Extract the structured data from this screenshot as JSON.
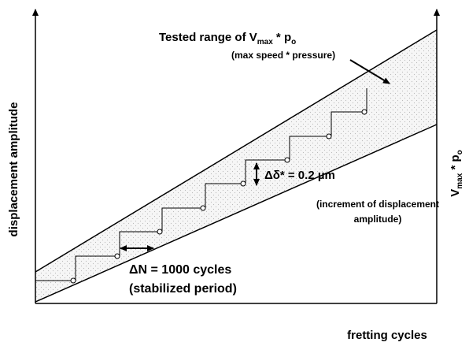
{
  "title_parts": [
    "Tested range of V",
    "max",
    " * p",
    "o"
  ],
  "subtitle": "(max speed * pressure)",
  "y_axis_label": "displacement amplitude",
  "x_axis_label": "fretting cycles",
  "right_axis_parts": [
    "V",
    "max",
    " * p",
    "o"
  ],
  "delta_delta": "Δδ* = 0.2 µm",
  "delta_delta_note": [
    "(increment of displacement",
    "amplitude)"
  ],
  "delta_n": "ΔN = 1000 cycles",
  "delta_n_note": "(stabilized period)"
}
